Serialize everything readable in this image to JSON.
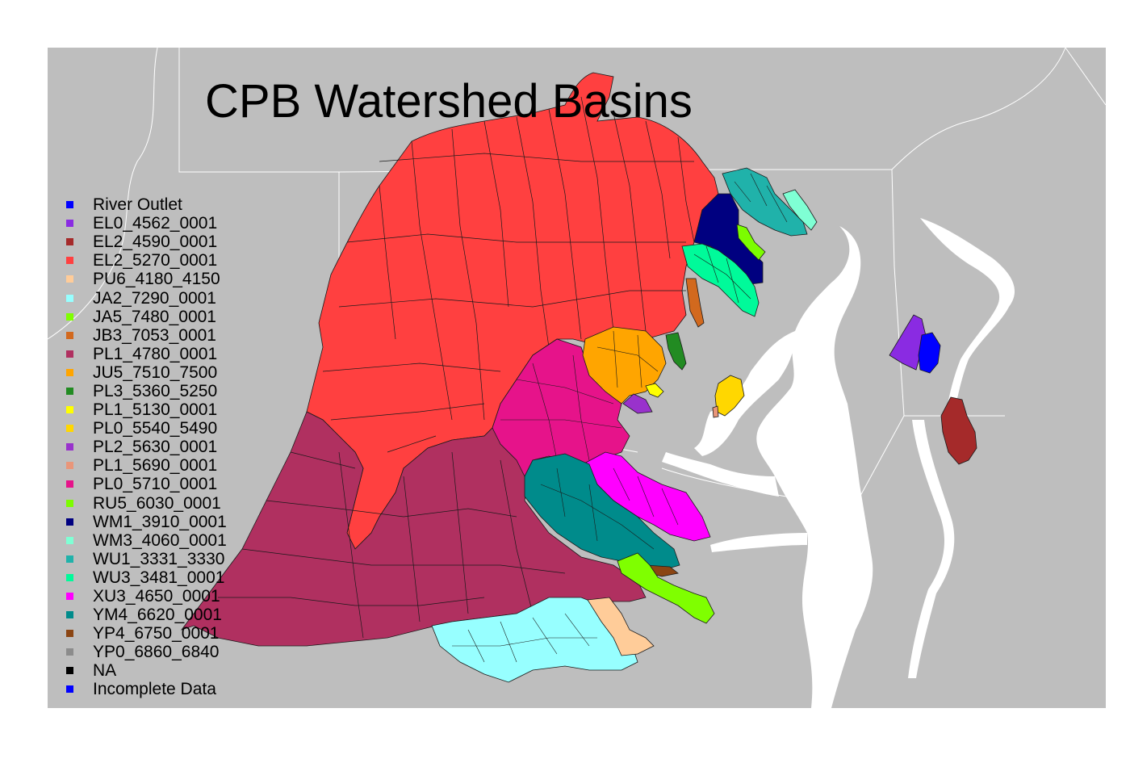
{
  "title": "CPB Watershed Basins",
  "colors": {
    "panel": "#bebebe",
    "page": "#ffffff",
    "water": "#ffffff",
    "boundary": "#ffffff"
  },
  "legend": [
    {
      "label": "River Outlet",
      "color": "#0000ff"
    },
    {
      "label": "EL0_4562_0001",
      "color": "#8a2be2"
    },
    {
      "label": "EL2_4590_0001",
      "color": "#a52a2a"
    },
    {
      "label": "EL2_5270_0001",
      "color": "#ff4040"
    },
    {
      "label": "PU6_4180_4150",
      "color": "#ffcc99"
    },
    {
      "label": "JA2_7290_0001",
      "color": "#97ffff"
    },
    {
      "label": "JA5_7480_0001",
      "color": "#7fff00"
    },
    {
      "label": "JB3_7053_0001",
      "color": "#d2691e"
    },
    {
      "label": "PL1_4780_0001",
      "color": "#b03060"
    },
    {
      "label": "JU5_7510_7500",
      "color": "#ffa500"
    },
    {
      "label": "PL3_5360_5250",
      "color": "#228b22"
    },
    {
      "label": "PL1_5130_0001",
      "color": "#ffff00"
    },
    {
      "label": "PL0_5540_5490",
      "color": "#ffd700"
    },
    {
      "label": "PL2_5630_0001",
      "color": "#9932cc"
    },
    {
      "label": "PL1_5690_0001",
      "color": "#e9967a"
    },
    {
      "label": "PL0_5710_0001",
      "color": "#e6138a"
    },
    {
      "label": "RU5_6030_0001",
      "color": "#7cfc00"
    },
    {
      "label": "WM1_3910_0001",
      "color": "#000080"
    },
    {
      "label": "WM3_4060_0001",
      "color": "#7fffd4"
    },
    {
      "label": "WU1_3331_3330",
      "color": "#20b2aa"
    },
    {
      "label": "WU3_3481_0001",
      "color": "#00fa9a"
    },
    {
      "label": "XU3_4650_0001",
      "color": "#ff00ff"
    },
    {
      "label": "YM4_6620_0001",
      "color": "#008b8b"
    },
    {
      "label": "YP4_6750_0001",
      "color": "#8b4513"
    },
    {
      "label": "YP0_6860_6840",
      "color": "#8c8c8c"
    },
    {
      "label": "NA",
      "color": "#000000"
    },
    {
      "label": "Incomplete Data",
      "color": "#0000ff"
    }
  ]
}
